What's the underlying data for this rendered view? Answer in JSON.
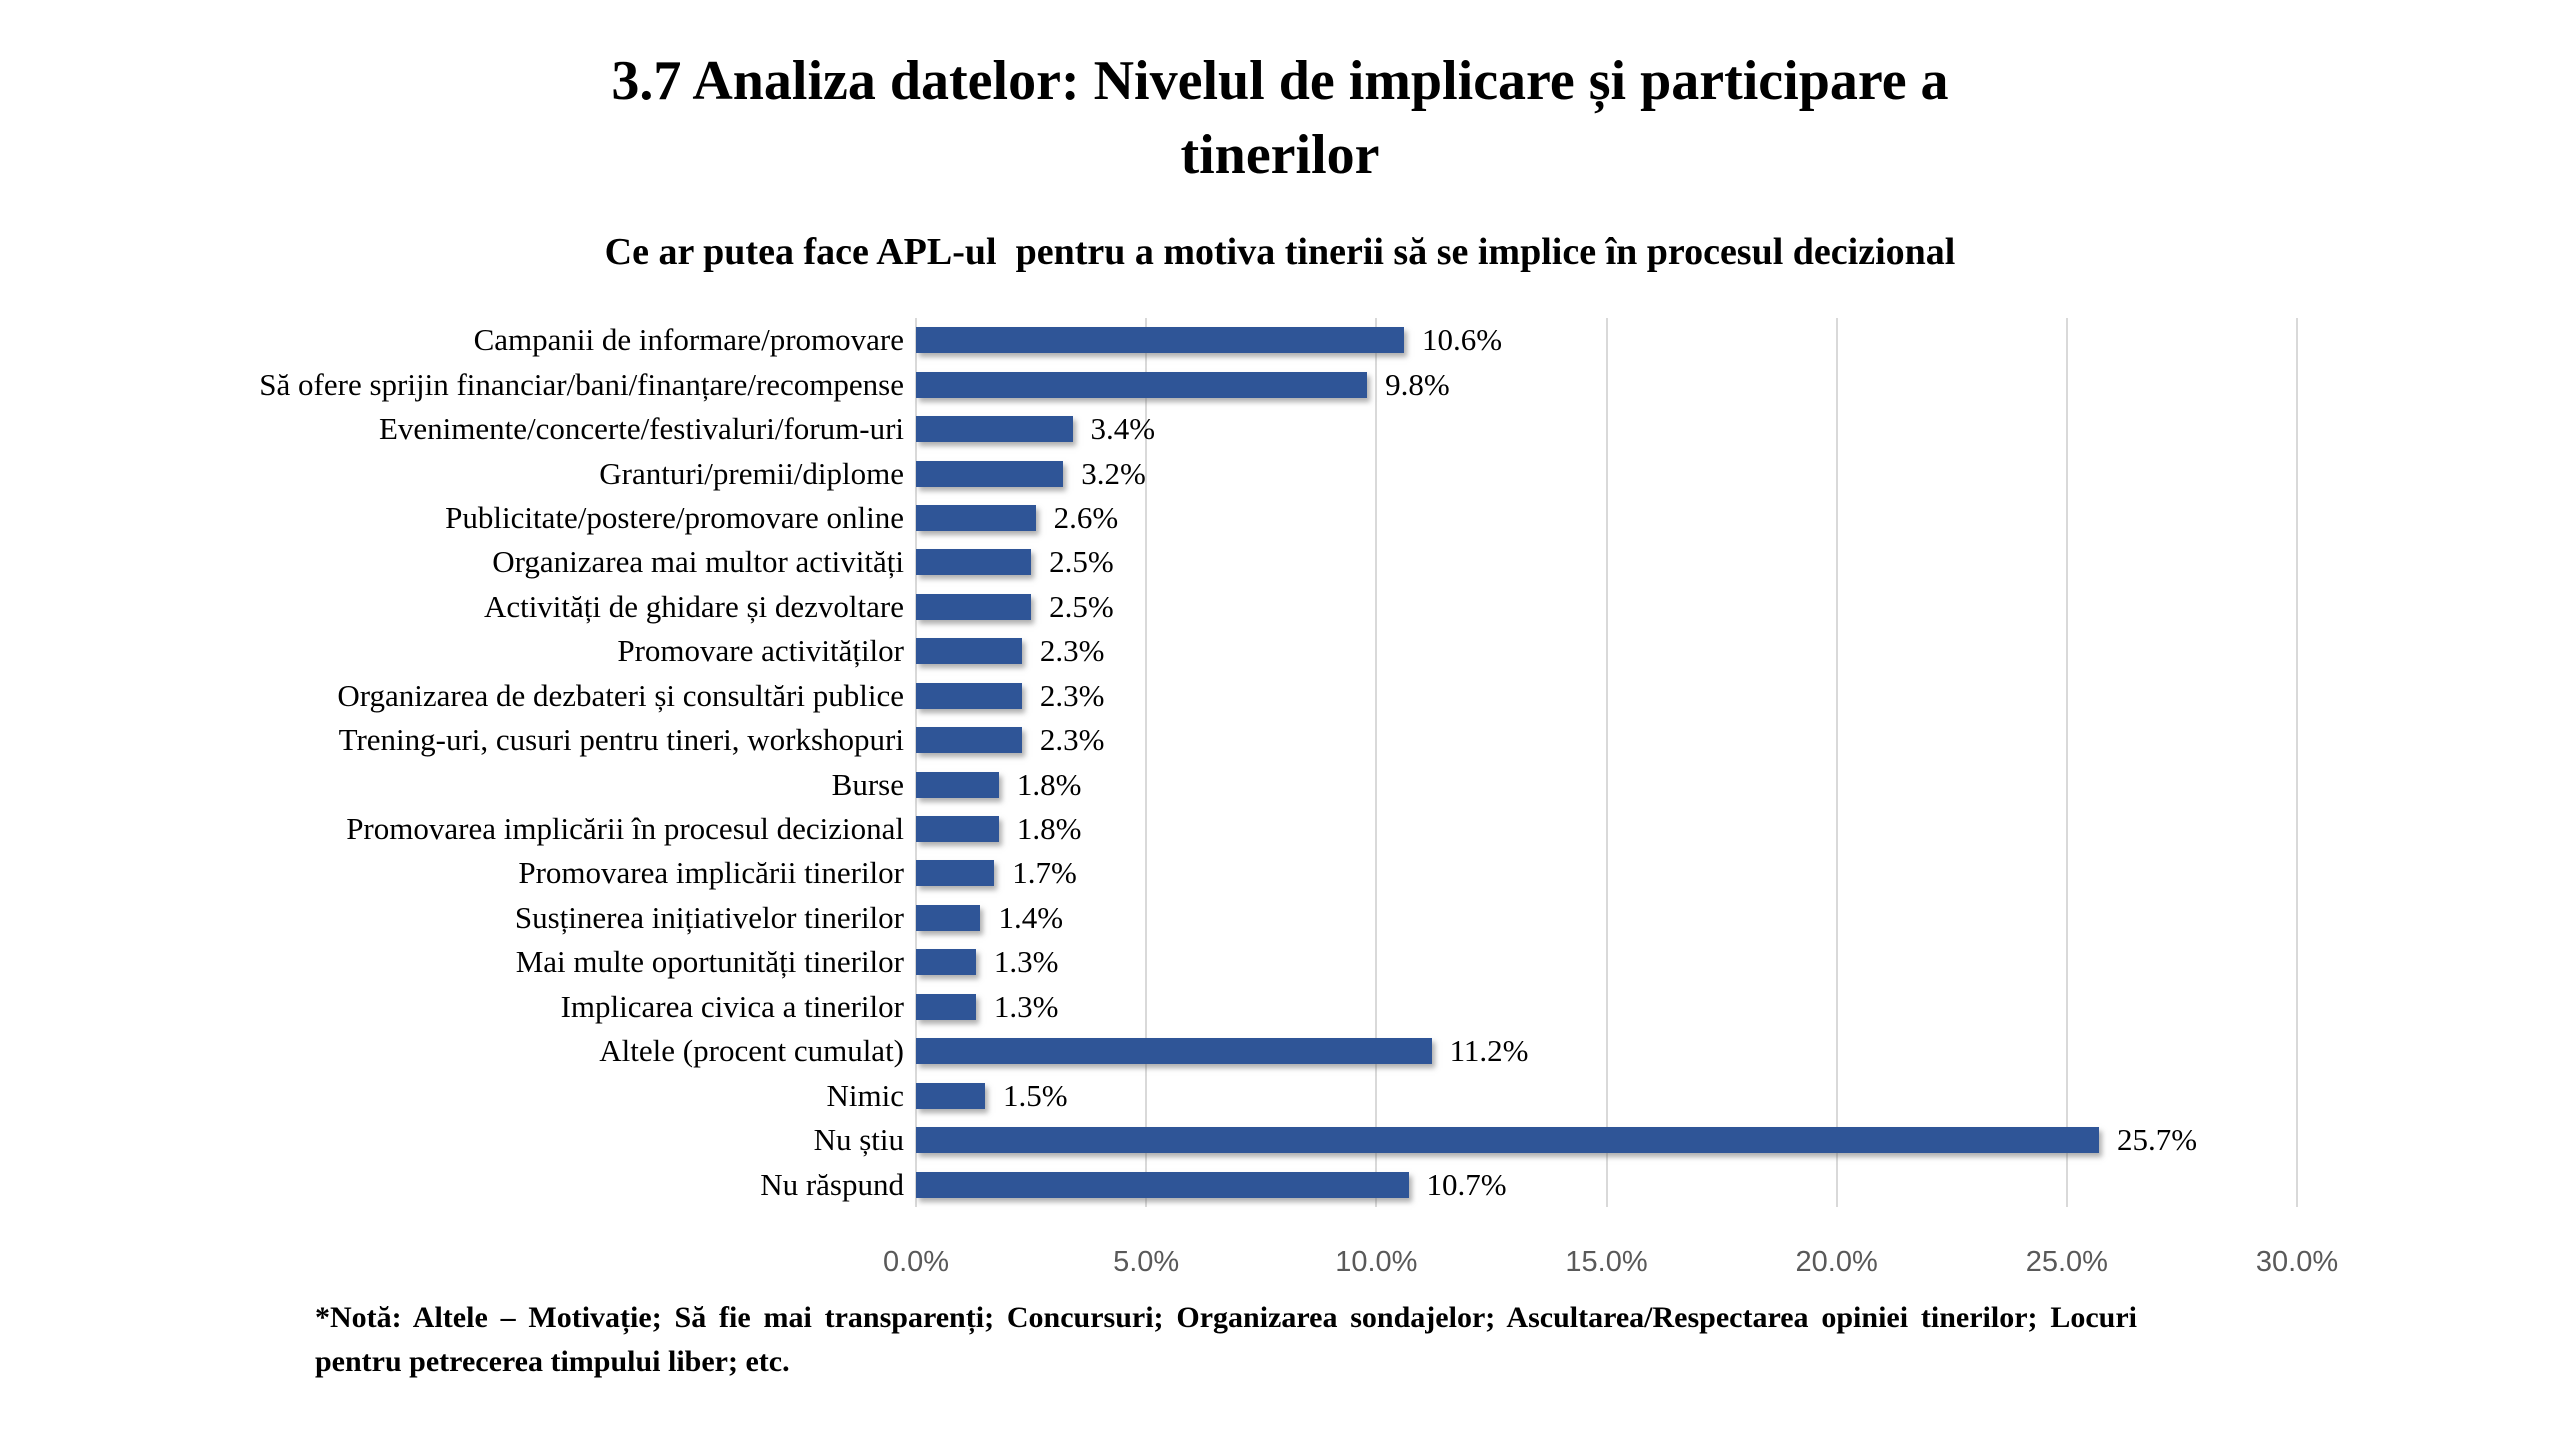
{
  "header": {
    "title_line1": "3.7 Analiza datelor: Nivelul de implicare și participare a",
    "title_line2": "tinerilor",
    "subtitle": "Ce ar putea face APL-ul  pentru a motiva tinerii să se implice în procesul decizional"
  },
  "chart_data": {
    "type": "bar",
    "orientation": "horizontal",
    "title": "Ce ar putea face APL-ul pentru a motiva tinerii să se implice în procesul decizional",
    "categories": [
      "Campanii de informare/promovare",
      "Să ofere sprijin financiar/bani/finanțare/recompense",
      "Evenimente/concerte/festivaluri/forum-uri",
      "Granturi/premii/diplome",
      "Publicitate/postere/promovare online",
      "Organizarea mai multor activități",
      "Activități de ghidare și dezvoltare",
      "Promovare activităților",
      "Organizarea de dezbateri și consultări publice",
      "Trening-uri, cusuri pentru tineri, workshopuri",
      "Burse",
      "Promovarea implicării în procesul decizional",
      "Promovarea implicării tinerilor",
      "Susținerea inițiativelor tinerilor",
      "Mai multe oportunități tinerilor",
      "Implicarea civica a tinerilor",
      "Altele (procent cumulat)",
      "Nimic",
      "Nu știu",
      "Nu răspund"
    ],
    "values": [
      10.6,
      9.8,
      3.4,
      3.2,
      2.6,
      2.5,
      2.5,
      2.3,
      2.3,
      2.3,
      1.8,
      1.8,
      1.7,
      1.4,
      1.3,
      1.3,
      11.2,
      1.5,
      25.7,
      10.7
    ],
    "value_labels": [
      "10.6%",
      "9.8%",
      "3.4%",
      "3.2%",
      "2.6%",
      "2.5%",
      "2.5%",
      "2.3%",
      "2.3%",
      "2.3%",
      "1.8%",
      "1.8%",
      "1.7%",
      "1.4%",
      "1.3%",
      "1.3%",
      "11.2%",
      "1.5%",
      "25.7%",
      "10.7%"
    ],
    "xlim": [
      0,
      30
    ],
    "x_tick_values": [
      0,
      5,
      10,
      15,
      20,
      25,
      30
    ],
    "x_tick_labels": [
      "0.0%",
      "5.0%",
      "10.0%",
      "15.0%",
      "20.0%",
      "25.0%",
      "30.0%"
    ],
    "grid": "vertical-gridlines",
    "legend_position": "none",
    "data_labels": "outside-end"
  },
  "footnote": {
    "text": "*Notă: Altele – Motivație; Să fie mai transparenți; Concursuri; Organizarea sondajelor; Ascultarea/Respectarea opiniei tinerilor; Locuri pentru petrecerea timpului liber; etc."
  },
  "colors": {
    "bar": "#2F5597",
    "gridline": "#D9D9D9",
    "tick_text": "#595959",
    "text": "#000000",
    "background": "#FFFFFF"
  }
}
